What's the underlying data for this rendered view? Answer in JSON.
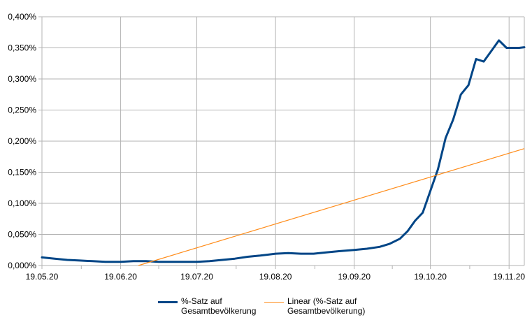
{
  "chart_data": {
    "type": "line",
    "ylim": [
      0,
      0.4
    ],
    "y_ticks": [
      "0,000%",
      "0,050%",
      "0,100%",
      "0,150%",
      "0,200%",
      "0,250%",
      "0,300%",
      "0,350%",
      "0,400%"
    ],
    "x_ticks": [
      "19.05.20",
      "19.06.20",
      "19.07.20",
      "19.08.20",
      "19.09.20",
      "19.10.20",
      "19.11.20"
    ],
    "x_start": "2020-05-19",
    "x_end": "2020-11-25",
    "grid": true,
    "legend_position": "bottom",
    "colors": {
      "series": "#004586",
      "trend": "#ff8c1a",
      "grid": "#b3b3b3",
      "axis": "#b3b3b3"
    },
    "series": [
      {
        "name": "%-Satz auf Gesamtbevölkerung",
        "x": [
          "2020-05-19",
          "2020-05-24",
          "2020-05-29",
          "2020-06-03",
          "2020-06-08",
          "2020-06-13",
          "2020-06-19",
          "2020-06-24",
          "2020-06-29",
          "2020-07-04",
          "2020-07-09",
          "2020-07-14",
          "2020-07-19",
          "2020-07-24",
          "2020-07-29",
          "2020-08-03",
          "2020-08-08",
          "2020-08-13",
          "2020-08-19",
          "2020-08-24",
          "2020-08-29",
          "2020-09-03",
          "2020-09-08",
          "2020-09-13",
          "2020-09-19",
          "2020-09-24",
          "2020-09-29",
          "2020-10-03",
          "2020-10-07",
          "2020-10-10",
          "2020-10-13",
          "2020-10-16",
          "2020-10-19",
          "2020-10-22",
          "2020-10-25",
          "2020-10-28",
          "2020-10-31",
          "2020-11-03",
          "2020-11-06",
          "2020-11-09",
          "2020-11-12",
          "2020-11-15",
          "2020-11-18",
          "2020-11-21",
          "2020-11-23",
          "2020-11-25"
        ],
        "values": [
          0.013,
          0.011,
          0.009,
          0.008,
          0.007,
          0.006,
          0.006,
          0.007,
          0.007,
          0.006,
          0.006,
          0.006,
          0.006,
          0.007,
          0.009,
          0.011,
          0.014,
          0.016,
          0.019,
          0.02,
          0.019,
          0.019,
          0.021,
          0.023,
          0.025,
          0.027,
          0.03,
          0.035,
          0.043,
          0.055,
          0.072,
          0.085,
          0.12,
          0.155,
          0.205,
          0.235,
          0.275,
          0.29,
          0.332,
          0.328,
          0.345,
          0.362,
          0.35,
          0.35,
          0.35,
          0.351
        ]
      },
      {
        "name": "Linear (%-Satz auf Gesamtbevölkerung)",
        "x": [
          "2020-06-26",
          "2020-11-25"
        ],
        "values": [
          0.0,
          0.188
        ]
      }
    ]
  },
  "legend": {
    "series_label": "%-Satz auf Gesamtbevölkerung",
    "trend_label": "Linear (%-Satz auf Gesamtbevölkerung)"
  }
}
